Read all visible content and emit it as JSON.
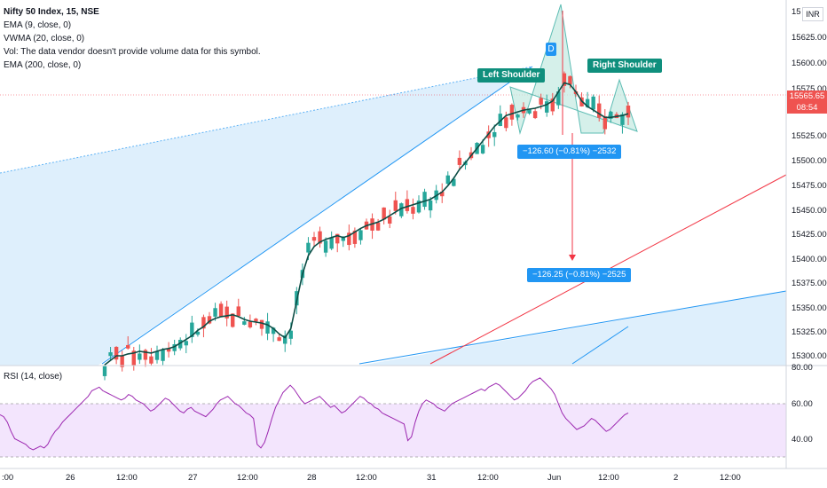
{
  "legend": {
    "title": "Nifty 50 Index, 15, NSE",
    "lines": [
      "EMA (9, close, 0)",
      "VWMA (20, close, 0)",
      "Vol: The data vendor doesn't provide volume data for this symbol.",
      "EMA (200, close, 0)"
    ]
  },
  "rsi": {
    "label": "RSI (14, close)",
    "values": [
      54,
      53,
      50,
      45,
      41,
      40,
      39,
      38,
      36,
      35,
      36,
      37,
      36,
      38,
      42,
      45,
      47,
      50,
      52,
      54,
      56,
      58,
      60,
      62,
      64,
      67,
      68,
      69,
      67,
      66,
      65,
      64,
      63,
      62,
      63,
      65,
      64,
      62,
      61,
      60,
      58,
      56,
      57,
      59,
      61,
      63,
      62,
      60,
      58,
      56,
      55,
      57,
      58,
      56,
      55,
      54,
      53,
      55,
      57,
      60,
      62,
      63,
      64,
      62,
      60,
      59,
      57,
      55,
      54,
      52,
      38,
      36,
      39,
      45,
      52,
      58,
      62,
      66,
      68,
      70,
      68,
      65,
      62,
      60,
      61,
      62,
      63,
      64,
      62,
      60,
      58,
      59,
      57,
      55,
      56,
      58,
      60,
      62,
      64,
      63,
      61,
      60,
      58,
      57,
      55,
      54,
      53,
      52,
      51,
      50,
      49,
      40,
      42,
      50,
      56,
      60,
      62,
      61,
      60,
      58,
      57,
      56,
      58,
      60,
      61,
      62,
      63,
      64,
      65,
      66,
      67,
      68,
      67,
      69,
      70,
      71,
      70,
      68,
      66,
      64,
      62,
      63,
      65,
      67,
      70,
      72,
      73,
      74,
      72,
      70,
      68,
      65,
      60,
      55,
      52,
      50,
      48,
      46,
      47,
      48,
      50,
      52,
      51,
      49,
      47,
      45,
      46,
      48,
      50,
      52,
      54,
      55
    ]
  },
  "price_axis": {
    "ticks": [
      "15650.00",
      "15625.00",
      "15600.00",
      "15575.00",
      "15550.00",
      "15525.00",
      "15500.00",
      "15475.00",
      "15450.00",
      "15425.00",
      "15400.00",
      "15375.00",
      "15350.00",
      "15325.00",
      "15300.00"
    ],
    "top_tick": "15",
    "currency": "INR"
  },
  "rsi_axis": {
    "ticks": [
      "80.00",
      "60.00",
      "40.00"
    ]
  },
  "time_axis": {
    "ticks": [
      ":00",
      "26",
      "12:00",
      "27",
      "12:00",
      "28",
      "12:00",
      "31",
      "12:00",
      "Jun",
      "12:00",
      "2",
      "12:00"
    ]
  },
  "last_price": {
    "price": "15565.65",
    "countdown": "08:54"
  },
  "pattern": {
    "left_label": "Left Shoulder",
    "right_label": "Right Shoulder",
    "head_badge": "D"
  },
  "measures": {
    "upper": "−126.60 (−0.81%) −2532",
    "lower": "−126.25 (−0.81%) −2525"
  },
  "colors": {
    "up": "#26a69a",
    "down": "#ef5350",
    "ema": "#0d4d45",
    "rsi": "#9c27b0",
    "rsi_band": "#f3e5fd",
    "channel": "#d8ecfb",
    "channel_line": "#2196f3",
    "red_line": "#f23645",
    "pattern_fill": "#c8ebe4"
  },
  "ema9": [
    15290,
    15295,
    15300,
    15300,
    15302,
    15303,
    15305,
    15304,
    15303,
    15305,
    15307,
    15308,
    15310,
    15314,
    15318,
    15322,
    15328,
    15332,
    15338,
    15341,
    15343,
    15344,
    15345,
    15343,
    15340,
    15338,
    15337,
    15336,
    15334,
    15330,
    15324,
    15320,
    15330,
    15360,
    15390,
    15410,
    15420,
    15425,
    15428,
    15430,
    15432,
    15430,
    15432,
    15436,
    15440,
    15443,
    15445,
    15447,
    15450,
    15454,
    15458,
    15462,
    15464,
    15466,
    15468,
    15470,
    15472,
    15476,
    15480,
    15487,
    15495,
    15505,
    15512,
    15520,
    15528,
    15536,
    15544,
    15552,
    15558,
    15564,
    15566,
    15568,
    15570,
    15571,
    15572,
    15574,
    15576,
    15580,
    15590,
    15600,
    15598,
    15590,
    15580,
    15574,
    15570,
    15566,
    15562,
    15562,
    15563,
    15564,
    15566
  ]
}
